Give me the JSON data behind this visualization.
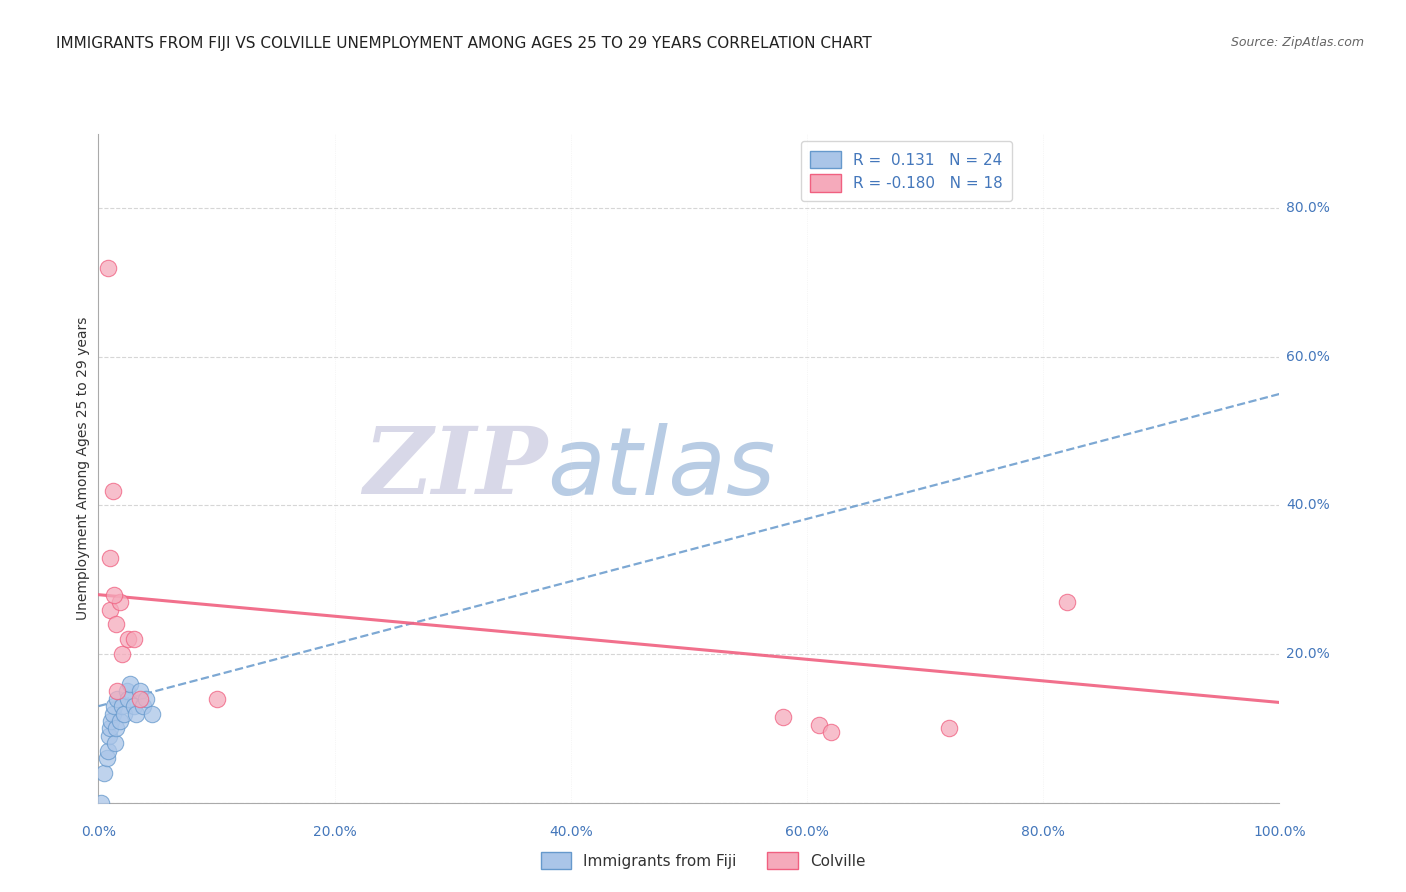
{
  "title": "IMMIGRANTS FROM FIJI VS COLVILLE UNEMPLOYMENT AMONG AGES 25 TO 29 YEARS CORRELATION CHART",
  "source": "Source: ZipAtlas.com",
  "ylabel": "Unemployment Among Ages 25 to 29 years",
  "xlim": [
    0.0,
    1.0
  ],
  "ylim": [
    0.0,
    0.9
  ],
  "x_ticks": [
    0.0,
    0.2,
    0.4,
    0.6,
    0.8,
    1.0
  ],
  "y_ticks": [
    0.0,
    0.2,
    0.4,
    0.6,
    0.8
  ],
  "r_fiji": 0.131,
  "n_fiji": 24,
  "r_colville": -0.18,
  "n_colville": 18,
  "fiji_color": "#aac5e8",
  "colville_color": "#f5aabb",
  "fiji_line_color": "#6699cc",
  "colville_line_color": "#f06080",
  "watermark_zip": "ZIP",
  "watermark_atlas": "atlas",
  "watermark_color_zip": "#d8d8e8",
  "watermark_color_atlas": "#b8cce4",
  "fiji_points_x": [
    0.005,
    0.007,
    0.008,
    0.009,
    0.01,
    0.011,
    0.012,
    0.013,
    0.014,
    0.015,
    0.016,
    0.018,
    0.02,
    0.022,
    0.024,
    0.025,
    0.027,
    0.03,
    0.032,
    0.035,
    0.038,
    0.04,
    0.045,
    0.002
  ],
  "fiji_points_y": [
    0.04,
    0.06,
    0.07,
    0.09,
    0.1,
    0.11,
    0.12,
    0.13,
    0.08,
    0.1,
    0.14,
    0.11,
    0.13,
    0.12,
    0.15,
    0.14,
    0.16,
    0.13,
    0.12,
    0.15,
    0.13,
    0.14,
    0.12,
    0.0
  ],
  "colville_points_x": [
    0.008,
    0.01,
    0.012,
    0.015,
    0.018,
    0.02,
    0.025,
    0.03,
    0.035,
    0.1,
    0.58,
    0.61,
    0.62,
    0.72,
    0.82,
    0.01,
    0.013,
    0.016
  ],
  "colville_points_y": [
    0.72,
    0.26,
    0.42,
    0.24,
    0.27,
    0.2,
    0.22,
    0.22,
    0.14,
    0.14,
    0.115,
    0.105,
    0.095,
    0.1,
    0.27,
    0.33,
    0.28,
    0.15
  ],
  "fiji_trend_x": [
    0.0,
    1.0
  ],
  "fiji_trend_y": [
    0.13,
    0.55
  ],
  "colville_trend_x": [
    0.0,
    1.0
  ],
  "colville_trend_y": [
    0.28,
    0.135
  ],
  "title_fontsize": 11,
  "source_fontsize": 9,
  "axis_label_fontsize": 10,
  "tick_fontsize": 10,
  "legend_fontsize": 11,
  "right_tick_color": "#4477bb",
  "label_color": "#4477bb"
}
